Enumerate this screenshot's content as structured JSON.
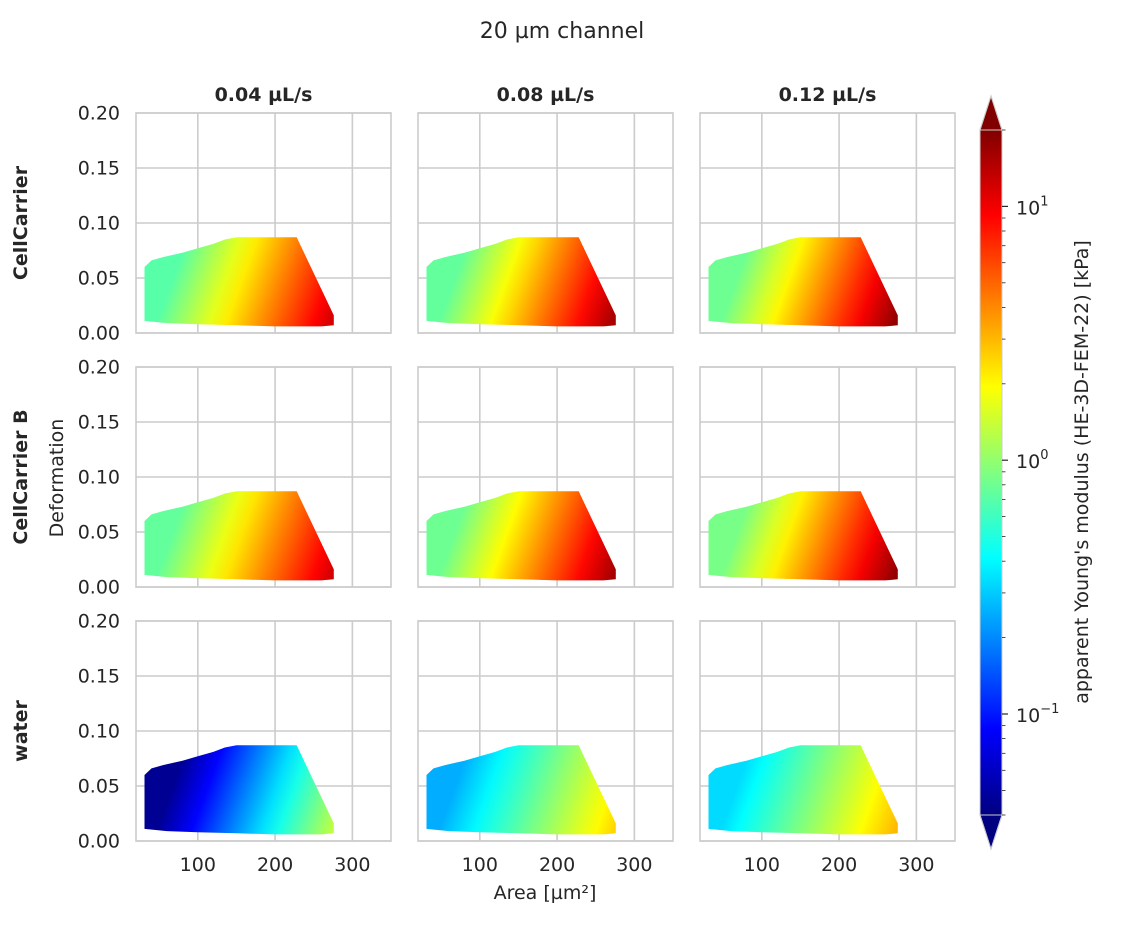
{
  "figure": {
    "title": "20 µm channel",
    "xlabel": "Area [µm²]",
    "ylabel": "Deformation"
  },
  "chart_data": {
    "type": "heatmap",
    "title": "20 µm channel",
    "xlabel": "Area [µm²]",
    "ylabel": "Deformation",
    "grid": true,
    "columns": [
      "0.04 µL/s",
      "0.08 µL/s",
      "0.12 µL/s"
    ],
    "rows": [
      "CellCarrier",
      "CellCarrier B",
      "water"
    ],
    "xlim": [
      20,
      350
    ],
    "ylim": [
      0.0,
      0.2
    ],
    "xticks": [
      100,
      200,
      300
    ],
    "xtick_labels": [
      "100",
      "200",
      "300"
    ],
    "yticks": [
      0.0,
      0.05,
      0.1,
      0.15,
      0.2
    ],
    "ytick_labels": [
      "0.00",
      "0.05",
      "0.10",
      "0.15",
      "0.20"
    ],
    "region_polygon": [
      [
        31,
        0.011
      ],
      [
        31,
        0.06
      ],
      [
        40,
        0.066
      ],
      [
        55,
        0.069
      ],
      [
        80,
        0.073
      ],
      [
        100,
        0.077
      ],
      [
        120,
        0.081
      ],
      [
        135,
        0.085
      ],
      [
        150,
        0.087
      ],
      [
        228,
        0.087
      ],
      [
        276,
        0.016
      ],
      [
        276,
        0.007
      ],
      [
        260,
        0.006
      ],
      [
        200,
        0.006
      ],
      [
        150,
        0.007
      ],
      [
        100,
        0.008
      ],
      [
        60,
        0.009
      ],
      [
        31,
        0.011
      ]
    ],
    "colorbar": {
      "label": "apparent Young's modulus (HE-3D-FEM-22) [kPa]",
      "scale": "log",
      "range": [
        0.04,
        20
      ],
      "tick_values": [
        0.1,
        1,
        10
      ],
      "ticks": [
        {
          "base": "10",
          "exp": "−1"
        },
        {
          "base": "10",
          "exp": "0"
        },
        {
          "base": "10",
          "exp": "1"
        }
      ],
      "colormap": "jet",
      "extend": "both"
    },
    "panels": [
      {
        "row": "CellCarrier",
        "column": "0.04 µL/s",
        "modulus_range_kPa": [
          0.7,
          12
        ]
      },
      {
        "row": "CellCarrier",
        "column": "0.08 µL/s",
        "modulus_range_kPa": [
          0.75,
          16
        ]
      },
      {
        "row": "CellCarrier",
        "column": "0.12 µL/s",
        "modulus_range_kPa": [
          0.8,
          18
        ]
      },
      {
        "row": "CellCarrier B",
        "column": "0.04 µL/s",
        "modulus_range_kPa": [
          0.75,
          12
        ]
      },
      {
        "row": "CellCarrier B",
        "column": "0.08 µL/s",
        "modulus_range_kPa": [
          0.8,
          16
        ]
      },
      {
        "row": "CellCarrier B",
        "column": "0.12 µL/s",
        "modulus_range_kPa": [
          0.85,
          18
        ]
      },
      {
        "row": "water",
        "column": "0.04 µL/s",
        "modulus_range_kPa": [
          0.045,
          1.3
        ]
      },
      {
        "row": "water",
        "column": "0.08 µL/s",
        "modulus_range_kPa": [
          0.25,
          2.5
        ]
      },
      {
        "row": "water",
        "column": "0.12 µL/s",
        "modulus_range_kPa": [
          0.33,
          3.0
        ]
      }
    ]
  }
}
